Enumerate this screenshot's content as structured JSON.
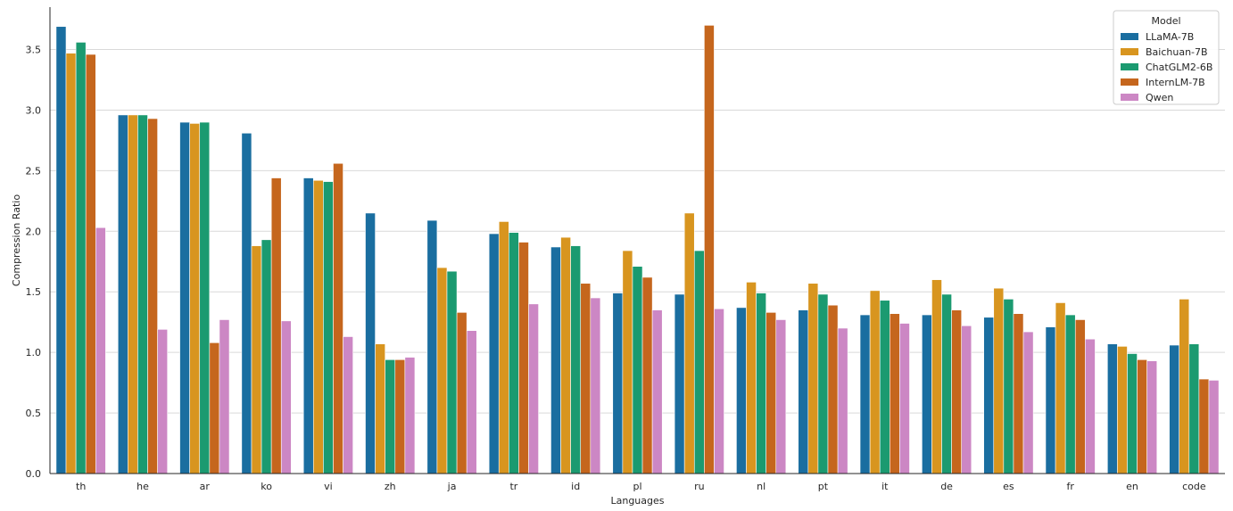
{
  "chart_data": {
    "type": "bar",
    "xlabel": "Languages",
    "ylabel": "Compression Ratio",
    "ylim": [
      0,
      3.85
    ],
    "yticks": [
      "0.0",
      "0.5",
      "1.0",
      "1.5",
      "2.0",
      "2.5",
      "3.0",
      "3.5"
    ],
    "grid": "horizontal",
    "legend_title": "Model",
    "legend_position": "top-right",
    "categories": [
      "th",
      "he",
      "ar",
      "ko",
      "vi",
      "zh",
      "ja",
      "tr",
      "id",
      "pl",
      "ru",
      "nl",
      "pt",
      "it",
      "de",
      "es",
      "fr",
      "en",
      "code"
    ],
    "series": [
      {
        "name": "LLaMA-7B",
        "color": "#1a6ea0",
        "values": [
          3.69,
          2.96,
          2.9,
          2.81,
          2.44,
          2.15,
          2.09,
          1.98,
          1.87,
          1.49,
          1.48,
          1.37,
          1.35,
          1.31,
          1.31,
          1.29,
          1.21,
          1.07,
          1.06
        ]
      },
      {
        "name": "Baichuan-7B",
        "color": "#d8951f",
        "values": [
          3.47,
          2.96,
          2.89,
          1.88,
          2.42,
          1.07,
          1.7,
          2.08,
          1.95,
          1.84,
          2.15,
          1.58,
          1.57,
          1.51,
          1.6,
          1.53,
          1.41,
          1.05,
          1.44
        ]
      },
      {
        "name": "ChatGLM2-6B",
        "color": "#1b9a70",
        "values": [
          3.56,
          2.96,
          2.9,
          1.93,
          2.41,
          0.94,
          1.67,
          1.99,
          1.88,
          1.71,
          1.84,
          1.49,
          1.48,
          1.43,
          1.48,
          1.44,
          1.31,
          0.99,
          1.07
        ]
      },
      {
        "name": "InternLM-7B",
        "color": "#c5661d",
        "values": [
          3.46,
          2.93,
          1.08,
          2.44,
          2.56,
          0.94,
          1.33,
          1.91,
          1.57,
          1.62,
          3.7,
          1.33,
          1.39,
          1.32,
          1.35,
          1.32,
          1.27,
          0.94,
          0.78
        ]
      },
      {
        "name": "Qwen",
        "color": "#cc87c4",
        "values": [
          2.03,
          1.19,
          1.27,
          1.26,
          1.13,
          0.96,
          1.18,
          1.4,
          1.45,
          1.35,
          1.36,
          1.27,
          1.2,
          1.24,
          1.22,
          1.17,
          1.11,
          0.93,
          0.77
        ]
      }
    ]
  }
}
